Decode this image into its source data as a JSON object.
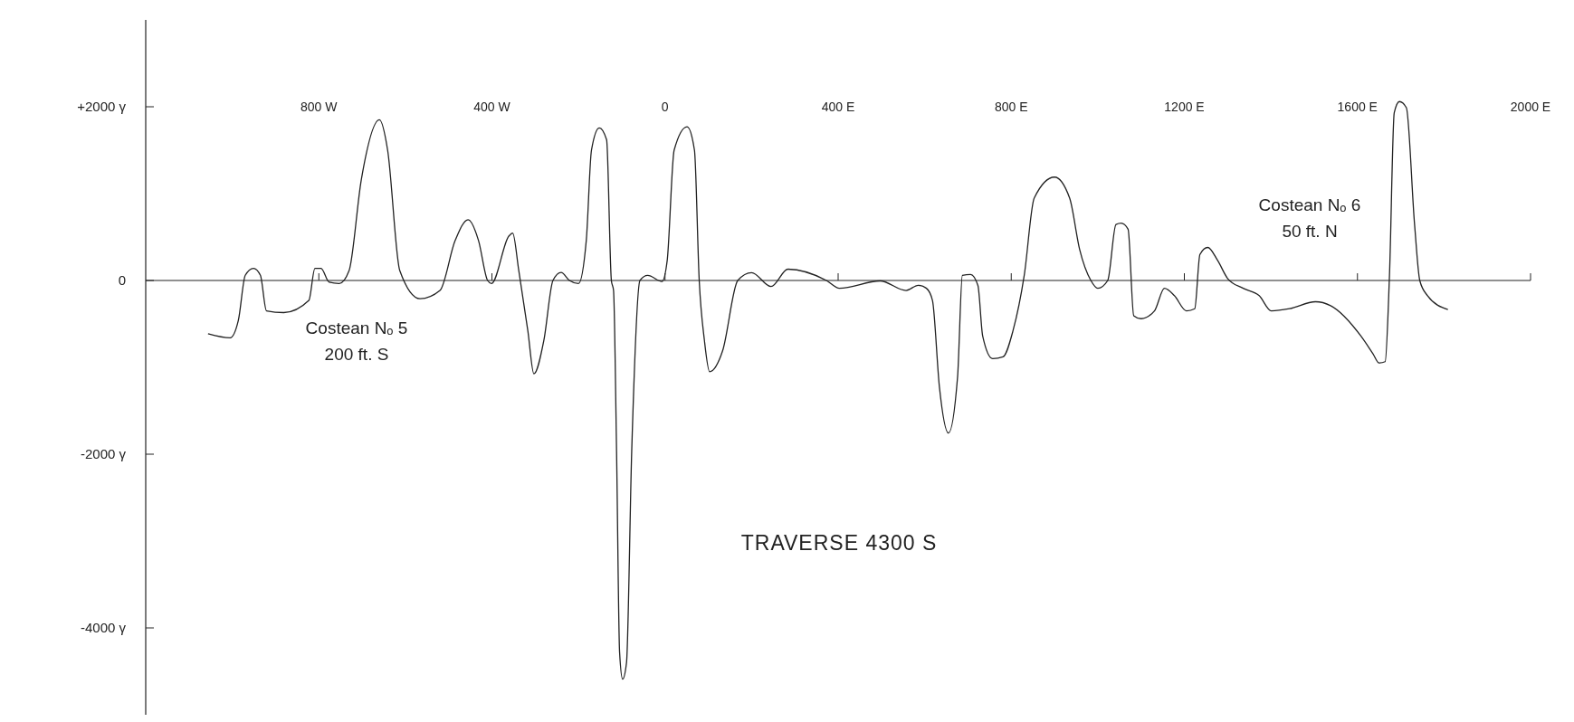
{
  "chart_data": {
    "type": "line",
    "title": "TRAVERSE 4300 S",
    "annotations": [
      "Costean Nₒ 5\n200 ft. S",
      "Costean Nₒ 6\n50 ft. N"
    ],
    "x": [
      -1056,
      -1005,
      -986,
      -970,
      -951,
      -935,
      -921,
      -881,
      -823,
      -809,
      -795,
      -776,
      -753,
      -730,
      -702,
      -660,
      -641,
      -613,
      -566,
      -520,
      -485,
      -455,
      -431,
      -410,
      -401,
      -361,
      -352,
      -338,
      -317,
      -303,
      -280,
      -259,
      -240,
      -221,
      -200,
      -182,
      -170,
      -152,
      -135,
      -124,
      -119,
      -112,
      -105,
      -98,
      -89,
      -77,
      -58,
      -40,
      -7,
      5,
      21,
      51,
      68,
      79,
      91,
      103,
      133,
      168,
      200,
      245,
      284,
      373,
      403,
      497,
      557,
      585,
      604,
      618,
      634,
      655,
      676,
      687,
      706,
      723,
      734,
      757,
      781,
      804,
      830,
      853,
      900,
      935,
      958,
      984,
      1000,
      1023,
      1042,
      1054,
      1070,
      1083,
      1100,
      1131,
      1154,
      1177,
      1205,
      1224,
      1236,
      1254,
      1277,
      1300,
      1336,
      1373,
      1401,
      1443,
      1503,
      1538,
      1608,
      1636,
      1650,
      1664,
      1674,
      1685,
      1697,
      1713,
      1732,
      1744,
      1762,
      1809
    ],
    "series": [
      {
        "color": "#222222",
        "values": [
          -613,
          -660,
          -460,
          60,
          140,
          60,
          -350,
          -370,
          -230,
          140,
          140,
          -20,
          -35,
          115,
          1156,
          1850,
          1500,
          115,
          -210,
          -115,
          460,
          700,
          460,
          0,
          -35,
          510,
          545,
          115,
          -580,
          -1075,
          -690,
          0,
          92,
          0,
          -35,
          460,
          1500,
          1757,
          1620,
          0,
          -115,
          -1965,
          -4280,
          -4590,
          -4400,
          -1965,
          0,
          58,
          -12,
          230,
          1500,
          1770,
          1500,
          0,
          -690,
          -1050,
          -810,
          0,
          90,
          -70,
          130,
          0,
          -90,
          -5,
          -115,
          -55,
          -90,
          -230,
          -1225,
          -1757,
          -1110,
          58,
          69,
          -58,
          -640,
          -900,
          -880,
          -580,
          58,
          948,
          1190,
          948,
          358,
          0,
          -90,
          0,
          645,
          660,
          590,
          -405,
          -440,
          -350,
          -90,
          -175,
          -350,
          -325,
          300,
          380,
          230,
          23,
          -90,
          -175,
          -350,
          -325,
          -245,
          -290,
          -640,
          -845,
          -950,
          -935,
          58,
          1930,
          2060,
          1990,
          645,
          0,
          -175,
          -335
        ]
      }
    ],
    "xlim": [
      -1200,
      2000
    ],
    "ylim": [
      -5000,
      3000
    ],
    "xticks": [
      {
        "value": -800,
        "label": "800 W"
      },
      {
        "value": -400,
        "label": "400 W"
      },
      0,
      {
        "value": 400,
        "label": "400 E"
      },
      {
        "value": 800,
        "label": "800 E"
      },
      {
        "value": 1200,
        "label": "1200 E"
      },
      {
        "value": 1600,
        "label": "1600 E"
      },
      {
        "value": 2000,
        "label": "2000 E"
      }
    ],
    "yticks": [
      {
        "value": 2000,
        "label": "+2000 γ"
      },
      0,
      {
        "value": -2000,
        "label": "-2000 γ"
      },
      {
        "value": -4000,
        "label": "-4000 γ"
      }
    ]
  }
}
